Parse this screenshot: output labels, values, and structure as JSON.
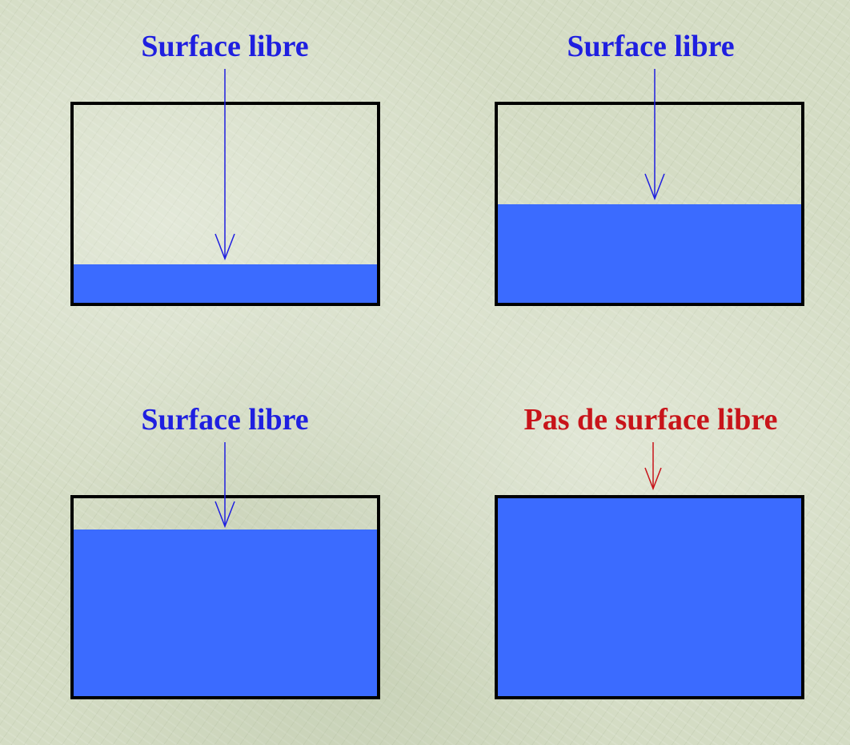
{
  "colors": {
    "water": "#3b6bff",
    "frame": "#000000",
    "label_free": "#1f1fe0",
    "label_none": "#c8141a"
  },
  "panels": [
    {
      "label": "Surface libre",
      "fill_fraction": 0.19,
      "label_color": "label_free"
    },
    {
      "label": "Surface libre",
      "fill_fraction": 0.5,
      "label_color": "label_free"
    },
    {
      "label": "Surface libre",
      "fill_fraction": 0.83,
      "label_color": "label_free"
    },
    {
      "label": "Pas de surface libre",
      "fill_fraction": 1.0,
      "label_color": "label_none"
    }
  ]
}
